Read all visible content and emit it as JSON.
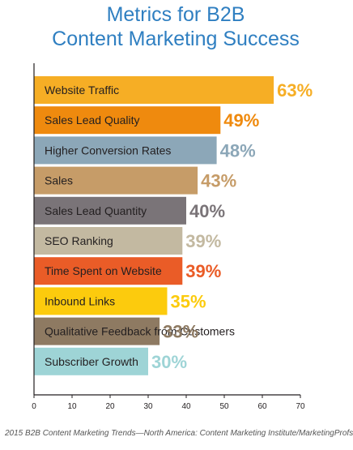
{
  "chart_data": {
    "type": "bar",
    "orientation": "horizontal",
    "title_lines": [
      "Metrics for B2B",
      "Content Marketing Success"
    ],
    "categories": [
      "Website Traffic",
      "Sales Lead Quality",
      "Higher Conversion Rates",
      "Sales",
      "Sales Lead Quantity",
      "SEO Ranking",
      "Time Spent on Website",
      "Inbound Links",
      "Qualitative Feedback from Customers",
      "Subscriber Growth"
    ],
    "values": [
      63,
      49,
      48,
      43,
      40,
      39,
      39,
      35,
      33,
      30
    ],
    "value_labels": [
      "63%",
      "49%",
      "48%",
      "43%",
      "40%",
      "39%",
      "39%",
      "35%",
      "33%",
      "30%"
    ],
    "colors": [
      "#f6ae25",
      "#ef8a0e",
      "#8ca7b8",
      "#c69c68",
      "#7a7478",
      "#c3b9a1",
      "#ea5c27",
      "#fccb0d",
      "#8e7a62",
      "#9ed4d6"
    ],
    "xlim": [
      0,
      70
    ],
    "xticks": [
      0,
      10,
      20,
      30,
      40,
      50,
      60,
      70
    ],
    "grid": false,
    "legend": "none"
  },
  "source_note": "2015 B2B Content Marketing Trends—North America: Content Marketing Institute/MarketingProfs"
}
